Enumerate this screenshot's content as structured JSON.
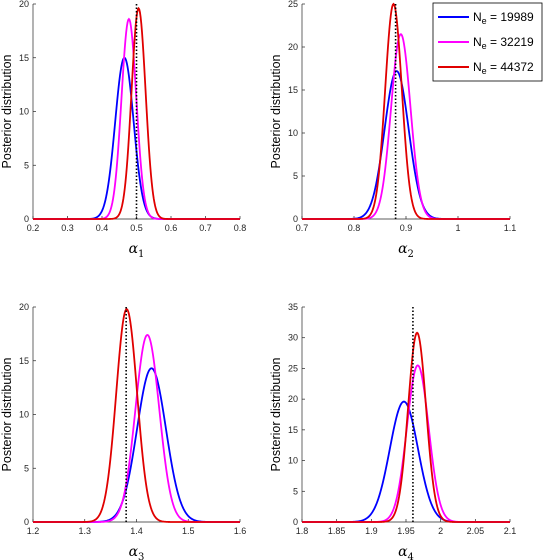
{
  "chart_data": [
    {
      "type": "line",
      "ylabel": "Posterior distribution",
      "xlabel_symbol": "α",
      "xlabel_sub": "1",
      "xlim": [
        0.2,
        0.8
      ],
      "ylim": [
        0,
        20
      ],
      "xticks": [
        "0.2",
        "0.3",
        "0.4",
        "0.5",
        "0.6",
        "0.7",
        "0.8"
      ],
      "xtick_values": [
        0.2,
        0.3,
        0.4,
        0.5,
        0.6,
        0.7,
        0.8
      ],
      "yticks": [
        "0",
        "5",
        "10",
        "15",
        "20"
      ],
      "ytick_values": [
        0,
        5,
        10,
        15,
        20
      ],
      "true_value": 0.5,
      "series": [
        {
          "name": "N_e = 19989",
          "color": "#0000ff",
          "mean": 0.465,
          "peak": 15.0
        },
        {
          "name": "N_e = 32219",
          "color": "#ff00ff",
          "mean": 0.478,
          "peak": 18.6
        },
        {
          "name": "N_e = 44372",
          "color": "#e00000",
          "mean": 0.506,
          "peak": 19.6
        }
      ]
    },
    {
      "type": "line",
      "ylabel": "Posterior distribution",
      "xlabel_symbol": "α",
      "xlabel_sub": "2",
      "xlim": [
        0.7,
        1.1
      ],
      "ylim": [
        0,
        25
      ],
      "xticks": [
        "0.7",
        "0.8",
        "0.9",
        "1",
        "1.1"
      ],
      "xtick_values": [
        0.7,
        0.8,
        0.9,
        1.0,
        1.1
      ],
      "yticks": [
        "0",
        "5",
        "10",
        "15",
        "20",
        "25"
      ],
      "ytick_values": [
        0,
        5,
        10,
        15,
        20,
        25
      ],
      "true_value": 0.88,
      "series": [
        {
          "name": "N_e = 19989",
          "color": "#0000ff",
          "mean": 0.882,
          "peak": 17.2
        },
        {
          "name": "N_e = 32219",
          "color": "#ff00ff",
          "mean": 0.89,
          "peak": 21.5
        },
        {
          "name": "N_e = 44372",
          "color": "#e00000",
          "mean": 0.876,
          "peak": 25.0
        }
      ]
    },
    {
      "type": "line",
      "ylabel": "Posterior distribution",
      "xlabel_symbol": "α",
      "xlabel_sub": "3",
      "xlim": [
        1.2,
        1.6
      ],
      "ylim": [
        0,
        20
      ],
      "xticks": [
        "1.2",
        "1.3",
        "1.4",
        "1.5",
        "1.6"
      ],
      "xtick_values": [
        1.2,
        1.3,
        1.4,
        1.5,
        1.6
      ],
      "yticks": [
        "0",
        "5",
        "10",
        "15",
        "20"
      ],
      "ytick_values": [
        0,
        5,
        10,
        15,
        20
      ],
      "true_value": 1.38,
      "series": [
        {
          "name": "N_e = 19989",
          "color": "#0000ff",
          "mean": 1.429,
          "peak": 14.3
        },
        {
          "name": "N_e = 32219",
          "color": "#ff00ff",
          "mean": 1.421,
          "peak": 17.4
        },
        {
          "name": "N_e = 44372",
          "color": "#e00000",
          "mean": 1.381,
          "peak": 19.8
        }
      ]
    },
    {
      "type": "line",
      "ylabel": "Posterior distribution",
      "xlabel_symbol": "α",
      "xlabel_sub": "4",
      "xlim": [
        1.8,
        2.1
      ],
      "ylim": [
        0,
        35
      ],
      "xticks": [
        "1.8",
        "1.85",
        "1.9",
        "1.95",
        "2",
        "2.05",
        "2.1"
      ],
      "xtick_values": [
        1.8,
        1.85,
        1.9,
        1.95,
        2.0,
        2.05,
        2.1
      ],
      "yticks": [
        "0",
        "5",
        "10",
        "15",
        "20",
        "25",
        "30",
        "35"
      ],
      "ytick_values": [
        0,
        5,
        10,
        15,
        20,
        25,
        30,
        35
      ],
      "true_value": 1.96,
      "series": [
        {
          "name": "N_e = 19989",
          "color": "#0000ff",
          "mean": 1.947,
          "peak": 19.6
        },
        {
          "name": "N_e = 32219",
          "color": "#ff00ff",
          "mean": 1.967,
          "peak": 25.5
        },
        {
          "name": "N_e = 44372",
          "color": "#e00000",
          "mean": 1.966,
          "peak": 30.8
        }
      ]
    }
  ],
  "legend": {
    "placement": "top-right",
    "entries": [
      {
        "prefix": "N",
        "sub": "e",
        "rest": " = 19989",
        "color": "#0000ff"
      },
      {
        "prefix": "N",
        "sub": "e",
        "rest": " = 32219",
        "color": "#ff00ff"
      },
      {
        "prefix": "N",
        "sub": "e",
        "rest": " = 44372",
        "color": "#e00000"
      }
    ]
  }
}
